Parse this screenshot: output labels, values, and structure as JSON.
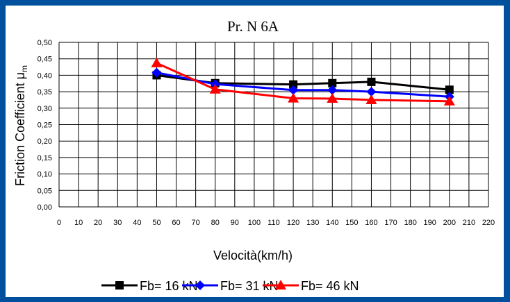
{
  "chart_data": {
    "type": "line",
    "title": "Pr. N 6A",
    "xlabel": "Velocità(km/h)",
    "ylabel": "Friction Coefficient μ",
    "ylabel_subscript": "m",
    "xlim": [
      0,
      220
    ],
    "ylim": [
      0,
      0.5
    ],
    "x_ticks": [
      "0",
      "10",
      "20",
      "30",
      "40",
      "50",
      "60",
      "70",
      "80",
      "90",
      "100",
      "110",
      "120",
      "130",
      "140",
      "150",
      "160",
      "170",
      "180",
      "190",
      "200",
      "210",
      "220"
    ],
    "y_ticks": [
      "0,00",
      "0,05",
      "0,10",
      "0,15",
      "0,20",
      "0,25",
      "0,30",
      "0,35",
      "0,40",
      "0,45",
      "0,50"
    ],
    "grid": true,
    "legend_position": "bottom",
    "x": [
      50,
      80,
      120,
      140,
      160,
      200
    ],
    "series": [
      {
        "name": "Fb= 16 kN",
        "color": "#000000",
        "marker": "square",
        "values": [
          0.4,
          0.376,
          0.372,
          0.376,
          0.38,
          0.356
        ]
      },
      {
        "name": "Fb= 31 kN",
        "color": "#0000ff",
        "marker": "diamond",
        "values": [
          0.408,
          0.373,
          0.355,
          0.355,
          0.35,
          0.335
        ]
      },
      {
        "name": "Fb= 46 kN",
        "color": "#ff0000",
        "marker": "triangle",
        "values": [
          0.437,
          0.357,
          0.33,
          0.329,
          0.325,
          0.321
        ]
      }
    ]
  }
}
